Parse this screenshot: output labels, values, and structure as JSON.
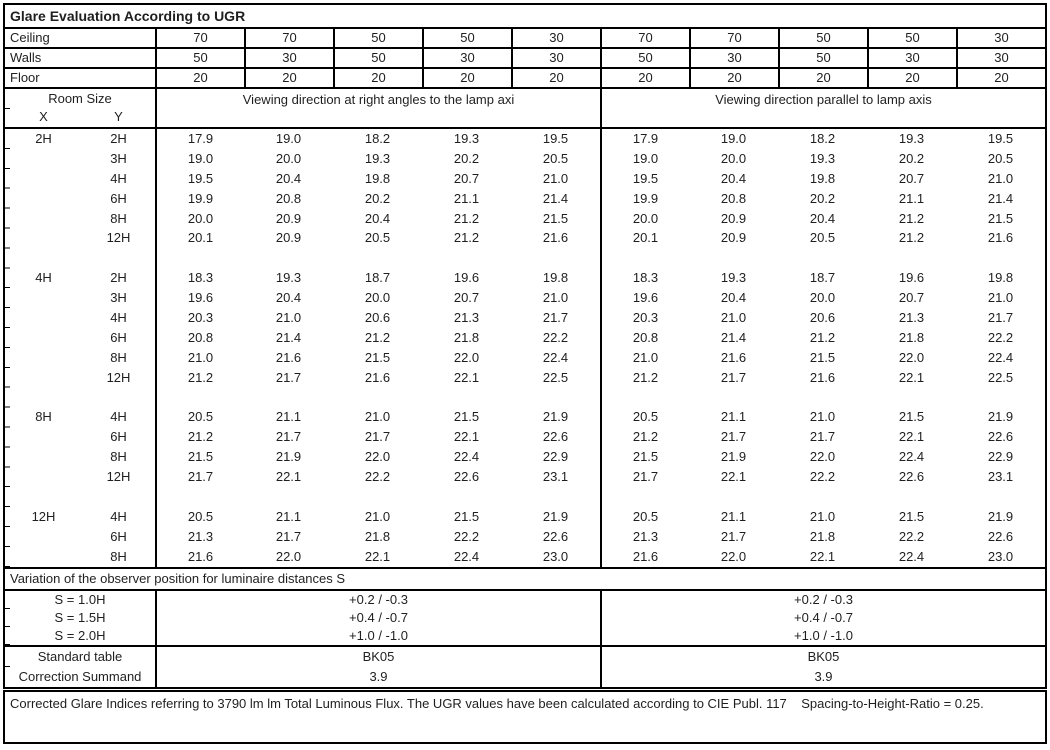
{
  "title": "Glare Evaluation According to UGR",
  "surface_rows": [
    {
      "label": "Ceiling",
      "values": [
        "70",
        "70",
        "50",
        "50",
        "30",
        "70",
        "70",
        "50",
        "50",
        "30"
      ]
    },
    {
      "label": "Walls",
      "values": [
        "50",
        "30",
        "50",
        "30",
        "30",
        "50",
        "30",
        "50",
        "30",
        "30"
      ]
    },
    {
      "label": "Floor",
      "values": [
        "20",
        "20",
        "20",
        "20",
        "20",
        "20",
        "20",
        "20",
        "20",
        "20"
      ]
    }
  ],
  "room_size": {
    "title": "Room Size",
    "x_label": "X",
    "y_label": "Y"
  },
  "direction_headers": {
    "right_angles": "Viewing direction at right angles to the lamp axi",
    "parallel": "Viewing direction parallel to lamp axis"
  },
  "ugr_sections": [
    {
      "x": "2H",
      "rows": [
        {
          "y": "2H",
          "values": [
            "17.9",
            "19.0",
            "18.2",
            "19.3",
            "19.5",
            "17.9",
            "19.0",
            "18.2",
            "19.3",
            "19.5"
          ]
        },
        {
          "y": "3H",
          "values": [
            "19.0",
            "20.0",
            "19.3",
            "20.2",
            "20.5",
            "19.0",
            "20.0",
            "19.3",
            "20.2",
            "20.5"
          ]
        },
        {
          "y": "4H",
          "values": [
            "19.5",
            "20.4",
            "19.8",
            "20.7",
            "21.0",
            "19.5",
            "20.4",
            "19.8",
            "20.7",
            "21.0"
          ]
        },
        {
          "y": "6H",
          "values": [
            "19.9",
            "20.8",
            "20.2",
            "21.1",
            "21.4",
            "19.9",
            "20.8",
            "20.2",
            "21.1",
            "21.4"
          ]
        },
        {
          "y": "8H",
          "values": [
            "20.0",
            "20.9",
            "20.4",
            "21.2",
            "21.5",
            "20.0",
            "20.9",
            "20.4",
            "21.2",
            "21.5"
          ]
        },
        {
          "y": "12H",
          "values": [
            "20.1",
            "20.9",
            "20.5",
            "21.2",
            "21.6",
            "20.1",
            "20.9",
            "20.5",
            "21.2",
            "21.6"
          ]
        }
      ]
    },
    {
      "x": "4H",
      "rows": [
        {
          "y": "2H",
          "values": [
            "18.3",
            "19.3",
            "18.7",
            "19.6",
            "19.8",
            "18.3",
            "19.3",
            "18.7",
            "19.6",
            "19.8"
          ]
        },
        {
          "y": "3H",
          "values": [
            "19.6",
            "20.4",
            "20.0",
            "20.7",
            "21.0",
            "19.6",
            "20.4",
            "20.0",
            "20.7",
            "21.0"
          ]
        },
        {
          "y": "4H",
          "values": [
            "20.3",
            "21.0",
            "20.6",
            "21.3",
            "21.7",
            "20.3",
            "21.0",
            "20.6",
            "21.3",
            "21.7"
          ]
        },
        {
          "y": "6H",
          "values": [
            "20.8",
            "21.4",
            "21.2",
            "21.8",
            "22.2",
            "20.8",
            "21.4",
            "21.2",
            "21.8",
            "22.2"
          ]
        },
        {
          "y": "8H",
          "values": [
            "21.0",
            "21.6",
            "21.5",
            "22.0",
            "22.4",
            "21.0",
            "21.6",
            "21.5",
            "22.0",
            "22.4"
          ]
        },
        {
          "y": "12H",
          "values": [
            "21.2",
            "21.7",
            "21.6",
            "22.1",
            "22.5",
            "21.2",
            "21.7",
            "21.6",
            "22.1",
            "22.5"
          ]
        }
      ]
    },
    {
      "x": "8H",
      "rows": [
        {
          "y": "4H",
          "values": [
            "20.5",
            "21.1",
            "21.0",
            "21.5",
            "21.9",
            "20.5",
            "21.1",
            "21.0",
            "21.5",
            "21.9"
          ]
        },
        {
          "y": "6H",
          "values": [
            "21.2",
            "21.7",
            "21.7",
            "22.1",
            "22.6",
            "21.2",
            "21.7",
            "21.7",
            "22.1",
            "22.6"
          ]
        },
        {
          "y": "8H",
          "values": [
            "21.5",
            "21.9",
            "22.0",
            "22.4",
            "22.9",
            "21.5",
            "21.9",
            "22.0",
            "22.4",
            "22.9"
          ]
        },
        {
          "y": "12H",
          "values": [
            "21.7",
            "22.1",
            "22.2",
            "22.6",
            "23.1",
            "21.7",
            "22.1",
            "22.2",
            "22.6",
            "23.1"
          ]
        }
      ]
    },
    {
      "x": "12H",
      "rows": [
        {
          "y": "4H",
          "values": [
            "20.5",
            "21.1",
            "21.0",
            "21.5",
            "21.9",
            "20.5",
            "21.1",
            "21.0",
            "21.5",
            "21.9"
          ]
        },
        {
          "y": "6H",
          "values": [
            "21.3",
            "21.7",
            "21.8",
            "22.2",
            "22.6",
            "21.3",
            "21.7",
            "21.8",
            "22.2",
            "22.6"
          ]
        },
        {
          "y": "8H",
          "values": [
            "21.6",
            "22.0",
            "22.1",
            "22.4",
            "23.0",
            "21.6",
            "22.0",
            "22.1",
            "22.4",
            "23.0"
          ]
        }
      ]
    }
  ],
  "variation_title": "Variation of the observer position for luminaire distances S",
  "s_rows": [
    {
      "label": "S = 1.0H",
      "left": "+0.2 / -0.3",
      "right": "+0.2 / -0.3"
    },
    {
      "label": "S = 1.5H",
      "left": "+0.4 / -0.7",
      "right": "+0.4 / -0.7"
    },
    {
      "label": "S = 2.0H",
      "left": "+1.0 / -1.0",
      "right": "+1.0 / -1.0"
    }
  ],
  "summary_rows": [
    {
      "label": "Standard table",
      "left": "BK05",
      "right": "BK05"
    },
    {
      "label": "Correction Summand",
      "left": "3.9",
      "right": "3.9"
    }
  ],
  "footer": "Corrected Glare Indices referring to 3790 lm lm Total Luminous Flux. The UGR values have been calculated according to CIE Publ. 117    Spacing-to-Height-Ratio = 0.25.",
  "colors": {
    "border": "#000000",
    "text": "#1f1f1f",
    "background": "#ffffff"
  }
}
